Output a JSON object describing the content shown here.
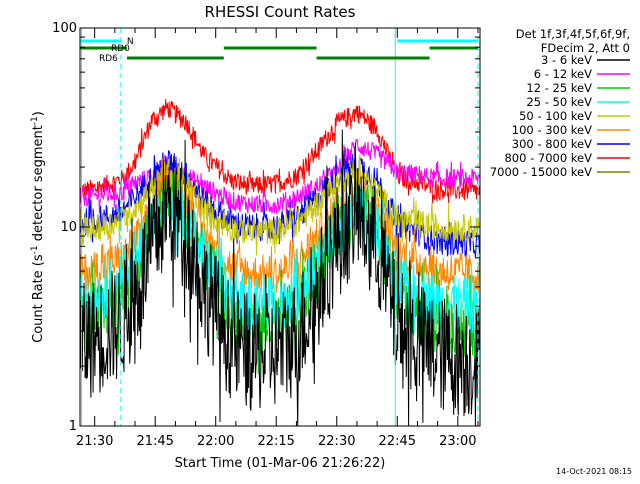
{
  "chart_data": {
    "type": "line",
    "title": "RHESSI Count Rates",
    "xlabel": "Start Time (01-Mar-06 21:26:22)",
    "ylabel_main": "Count Rate (s",
    "ylabel_exp": "-1",
    "ylabel_tail": " detector segment",
    "ylabel_exp2": "-1",
    "ylabel_close": ")",
    "y_scale": "log",
    "ylim": [
      1,
      100
    ],
    "xlim": [
      "21:26:22",
      "23:05:30"
    ],
    "x_ticks": [
      "21:30",
      "21:45",
      "22:00",
      "22:15",
      "22:30",
      "22:45",
      "23:00"
    ],
    "y_ticks": [
      "1",
      "10",
      "100"
    ],
    "legend_header": [
      "Det 1f,3f,4f,5f,6f,9f,",
      "FDecim 2, Att 0"
    ],
    "legend_position": "right",
    "series": [
      {
        "name": "3 - 6 keV",
        "color": "#000000",
        "values": [
          2.6,
          2.9,
          3.4,
          4.5,
          7.5,
          13,
          9.5,
          5,
          2.6,
          2.3,
          2.4,
          2.8,
          4.5,
          8.5,
          12,
          8,
          3.2,
          2.3,
          2.1
        ]
      },
      {
        "name": "6 - 12 keV",
        "color": "#ff00ff",
        "values": [
          14,
          14.5,
          15,
          16.5,
          18,
          20.5,
          18,
          16,
          13.5,
          13,
          13,
          14,
          16,
          19,
          26,
          23,
          19,
          17.5,
          17.5
        ]
      },
      {
        "name": "12 - 25 keV",
        "color": "#00cc00",
        "values": [
          3.3,
          3.8,
          4.5,
          6,
          9,
          14,
          11,
          6.8,
          3.6,
          3.3,
          3.3,
          4,
          6,
          10,
          13.5,
          10,
          4.5,
          3.3,
          3
        ]
      },
      {
        "name": "25 - 50 keV",
        "color": "#00ffff",
        "values": [
          4.2,
          4.7,
          5.5,
          7,
          10,
          13.5,
          11,
          7.2,
          4.5,
          4.1,
          4.1,
          4.6,
          6.2,
          9.5,
          12.5,
          9.5,
          5.2,
          4.2,
          4
        ]
      },
      {
        "name": "50 - 100 keV",
        "color": "#c8c800",
        "values": [
          9.5,
          10,
          11,
          12.5,
          15.5,
          19,
          16,
          12,
          9.8,
          9.5,
          9.5,
          10.5,
          13,
          16.5,
          19,
          15,
          11,
          10,
          9.8
        ]
      },
      {
        "name": "100 - 300 keV",
        "color": "#ff8800",
        "values": [
          5.8,
          6.3,
          7,
          8.5,
          11.5,
          16.5,
          13.5,
          9,
          6.3,
          5.8,
          5.8,
          6.5,
          8.8,
          12.5,
          16,
          12,
          7.5,
          6,
          5.8
        ]
      },
      {
        "name": "300 - 800 keV",
        "color": "#0000ff",
        "values": [
          10.5,
          11,
          12,
          14,
          17.5,
          21.5,
          18,
          13.5,
          10.5,
          10,
          10,
          11,
          14,
          18,
          21,
          17,
          10.5,
          8.5,
          8.2
        ]
      },
      {
        "name": "800 - 7000 keV",
        "color": "#ff0000",
        "values": [
          15,
          16,
          17.5,
          21,
          34,
          40,
          33,
          23,
          17,
          16,
          16.5,
          18,
          24,
          33,
          38,
          31,
          18,
          15.5,
          15
        ]
      },
      {
        "name": "7000 - 15000 keV",
        "color": "#808000",
        "values": []
      }
    ],
    "time_points": [
      "21:26:22",
      "21:32",
      "21:37",
      "21:40",
      "21:44",
      "21:48",
      "21:53",
      "21:57",
      "22:04",
      "22:09",
      "22:15",
      "22:20",
      "22:25",
      "22:30",
      "22:35",
      "22:40",
      "22:45",
      "22:55",
      "23:05"
    ],
    "attenuator_segments": [
      {
        "label": "N",
        "color": "#00ffff",
        "start": "21:26:22",
        "end": "21:36:30"
      },
      {
        "label": "",
        "color": "#00ffff",
        "start": "22:45:00",
        "end": "23:05:00"
      }
    ],
    "decimation_segments": [
      {
        "label": "RD0",
        "color": "#008000",
        "start": "21:26:22",
        "end": "21:38:00",
        "row": "upper"
      },
      {
        "label": "RD6",
        "color": "#008000",
        "start": "21:38:00",
        "end": "22:02:00",
        "row": "lower"
      },
      {
        "label": "",
        "color": "#008000",
        "start": "22:02:00",
        "end": "22:25:00",
        "row": "upper"
      },
      {
        "label": "",
        "color": "#008000",
        "start": "22:25:00",
        "end": "22:53:00",
        "row": "lower"
      },
      {
        "label": "",
        "color": "#008000",
        "start": "22:53:00",
        "end": "23:05:00",
        "row": "upper"
      }
    ],
    "vertical_markers": [
      {
        "time": "21:26:45",
        "style": "solid",
        "color": "#00ffff"
      },
      {
        "time": "21:36:30",
        "style": "dashed",
        "color": "#00ffff"
      },
      {
        "time": "22:44:30",
        "style": "solid",
        "color": "#00ffff"
      },
      {
        "time": "23:05:00",
        "style": "dashed",
        "color": "#00ffff"
      }
    ],
    "footer": "14-Oct-2021 08:15"
  }
}
